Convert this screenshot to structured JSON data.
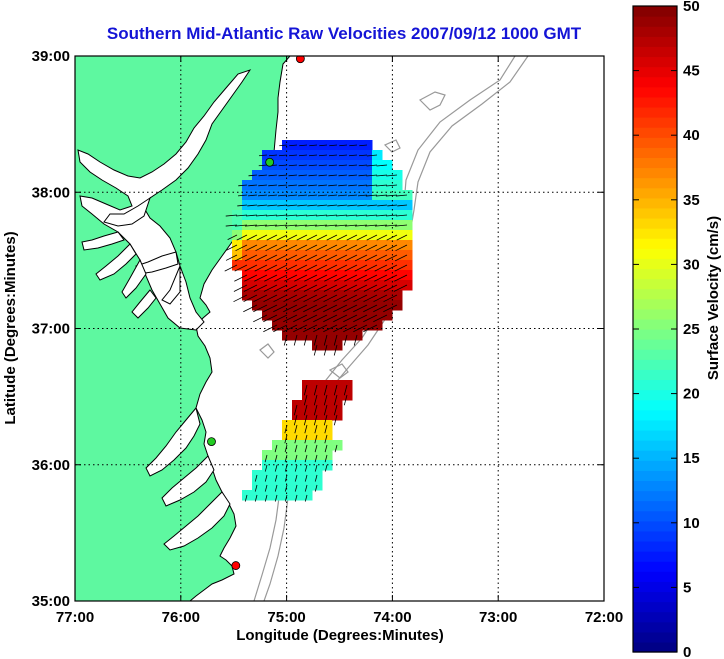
{
  "title": "Southern Mid-Atlantic Raw Velocities 2007/09/12 1000 GMT",
  "chart_data": {
    "type": "map",
    "xlabel": "Longitude (Degrees:Minutes)",
    "ylabel": "Latitude (Degrees:Minutes)",
    "xlim": [
      -77,
      -72
    ],
    "ylim": [
      35,
      39
    ],
    "xticks": [
      {
        "value": -77,
        "label": "77:00"
      },
      {
        "value": -76,
        "label": "76:00"
      },
      {
        "value": -75,
        "label": "75:00"
      },
      {
        "value": -74,
        "label": "74:00"
      },
      {
        "value": -73,
        "label": "73:00"
      },
      {
        "value": -72,
        "label": "72:00"
      }
    ],
    "yticks": [
      {
        "value": 35,
        "label": "35:00"
      },
      {
        "value": 36,
        "label": "36:00"
      },
      {
        "value": 37,
        "label": "37:00"
      },
      {
        "value": 38,
        "label": "38:00"
      },
      {
        "value": 39,
        "label": "39:00"
      }
    ],
    "grid": "dotted",
    "colorbar": {
      "label": "Surface Velocity (cm/s)",
      "min": 0,
      "max": 50,
      "ticks": [
        0,
        5,
        10,
        15,
        20,
        25,
        30,
        35,
        40,
        45,
        50
      ],
      "colormap": "jet"
    },
    "stations": [
      {
        "lon": -74.87,
        "lat": 38.98,
        "color": "#ff0000"
      },
      {
        "lon": -75.16,
        "lat": 38.22,
        "color": "#22cc22"
      },
      {
        "lon": -75.71,
        "lat": 36.17,
        "color": "#22cc22"
      },
      {
        "lon": -75.48,
        "lat": 35.26,
        "color": "#ff0000"
      }
    ]
  },
  "colors": {
    "land": "#5ef8a0",
    "coast": "#000000",
    "bathymetry": "#999999",
    "title": "#1414d6"
  }
}
